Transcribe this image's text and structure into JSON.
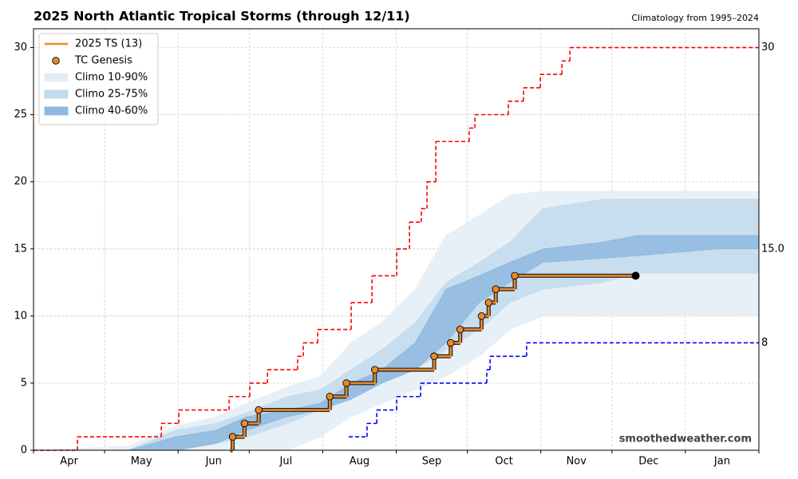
{
  "chart_data": {
    "type": "line",
    "title": "2025 North Atlantic Tropical Storms (through 12/11)",
    "subtitle": "Climatology from 1995–2024",
    "watermark": "smoothedweather.com",
    "xlim": [
      0,
      306
    ],
    "ylim": [
      0,
      31.4
    ],
    "xticks": [
      {
        "value": 0,
        "label": "Apr"
      },
      {
        "value": 30,
        "label": "May"
      },
      {
        "value": 61,
        "label": "Jun"
      },
      {
        "value": 91,
        "label": "Jul"
      },
      {
        "value": 122,
        "label": "Aug"
      },
      {
        "value": 153,
        "label": "Sep"
      },
      {
        "value": 183,
        "label": "Oct"
      },
      {
        "value": 214,
        "label": "Nov"
      },
      {
        "value": 244,
        "label": "Dec"
      },
      {
        "value": 275,
        "label": "Jan"
      }
    ],
    "yticks": [
      0,
      5,
      10,
      15,
      20,
      25,
      30
    ],
    "grid": true,
    "legend": "upper left",
    "x": [
      0,
      40,
      60,
      77,
      90,
      107,
      121,
      134,
      147,
      161,
      174,
      188,
      201,
      215,
      240,
      255,
      289,
      306
    ],
    "series": [
      {
        "name": "2025 TS (13)",
        "kind": "step",
        "color": "#e8892a",
        "x": [
          83,
          84,
          89,
          95,
          125,
          132,
          144,
          169,
          176,
          180,
          189,
          192,
          195,
          203,
          254
        ],
        "values": [
          0,
          1,
          2,
          3,
          4,
          5,
          6,
          7,
          8,
          9,
          10,
          11,
          12,
          13,
          13
        ]
      },
      {
        "name": "TC Genesis",
        "kind": "points",
        "color": "#e8892a",
        "x": [
          84,
          89,
          95,
          125,
          132,
          144,
          169,
          176,
          180,
          189,
          192,
          195,
          203
        ],
        "values": [
          1,
          2,
          3,
          4,
          5,
          6,
          7,
          8,
          9,
          10,
          11,
          12,
          13
        ]
      },
      {
        "name": "Climo 10-90%",
        "kind": "band",
        "color": "#e4edf6",
        "lower": [
          0,
          0,
          0,
          0,
          0,
          0,
          1,
          2.5,
          3.5,
          4.5,
          5.5,
          7,
          9,
          10,
          10,
          10,
          10,
          10
        ],
        "upper": [
          0,
          0.3,
          1.8,
          2.5,
          3.5,
          4.7,
          5.5,
          8,
          9.5,
          12,
          16,
          17.5,
          19,
          19.3,
          19.3,
          19.3,
          19.3,
          19.3
        ]
      },
      {
        "name": "Climo 25-75%",
        "kind": "band",
        "color": "#c2dbed",
        "lower": [
          0,
          0,
          0,
          0.5,
          1,
          2,
          3,
          4,
          5,
          6,
          7.5,
          9,
          11,
          12,
          12.5,
          13.2,
          13.2,
          13.2
        ],
        "upper": [
          0,
          0,
          1.5,
          2,
          2.8,
          4,
          4.5,
          6,
          7.5,
          9.5,
          12.5,
          14,
          15.5,
          18,
          18.7,
          18.7,
          18.7,
          18.7
        ]
      },
      {
        "name": "Climo 40-60%",
        "kind": "band",
        "color": "#8fb9de",
        "lower": [
          0,
          0,
          0,
          0.5,
          1.5,
          2.5,
          3,
          3.8,
          5,
          6,
          8,
          11,
          12.5,
          14,
          14.3,
          14.5,
          15,
          15
        ],
        "upper": [
          0,
          0,
          1,
          1.5,
          2.5,
          3,
          3.5,
          5,
          6,
          8,
          12,
          13,
          14,
          15,
          15.5,
          16,
          16,
          16
        ]
      },
      {
        "kind": "dashed-step",
        "color": "#ff0000",
        "x": [
          0,
          18.5,
          53.9,
          61.3,
          82.5,
          91.2,
          98.7,
          111.4,
          113.8,
          119.9,
          134,
          142.8,
          153.2,
          158.6,
          163.6,
          166,
          169.7,
          183.8,
          186.2,
          200.3,
          206.7,
          213.8,
          222.9,
          226.3
        ],
        "values": [
          0,
          1,
          2,
          3,
          4,
          5,
          6,
          7,
          8,
          9,
          11,
          13,
          15,
          17,
          18,
          20,
          23,
          24,
          25,
          26,
          27,
          28,
          29,
          30
        ]
      },
      {
        "kind": "dashed-step",
        "color": "#0000ff",
        "x": [
          133,
          140.7,
          144.8,
          153.2,
          163.3,
          191.2,
          192.6,
          208
        ],
        "values": [
          1,
          2,
          3,
          4,
          5,
          6,
          7,
          8
        ]
      }
    ],
    "end_labels": [
      {
        "value": 30,
        "label": "30"
      },
      {
        "value": 15,
        "label": "15.0"
      },
      {
        "value": 8,
        "label": "8"
      }
    ]
  }
}
